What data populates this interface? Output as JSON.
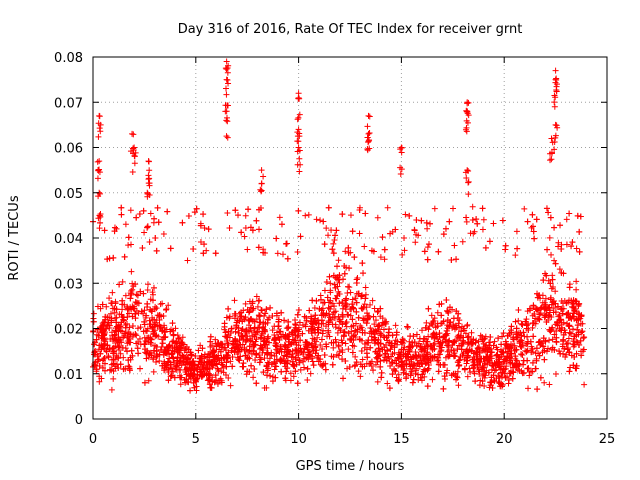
{
  "chart_data": {
    "type": "scatter",
    "title": "Day 316 of 2016, Rate Of TEC Index for receiver grnt",
    "xlabel": "GPS time / hours",
    "ylabel": "ROTI / TECUs",
    "xlim": [
      0,
      25
    ],
    "ylim": [
      0,
      0.08
    ],
    "x_ticks": [
      0,
      5,
      10,
      15,
      20,
      25
    ],
    "y_ticks": [
      0,
      0.01,
      0.02,
      0.03,
      0.04,
      0.05,
      0.06,
      0.07,
      0.08
    ],
    "x_tick_labels": [
      "0",
      "5",
      "10",
      "15",
      "20",
      "25"
    ],
    "y_tick_labels": [
      "0",
      "0.01",
      "0.02",
      "0.03",
      "0.04",
      "0.05",
      "0.06",
      "0.07",
      "0.08"
    ],
    "grid": true,
    "marker": "+",
    "marker_color": "#ff0000",
    "series": [
      {
        "name": "ROTI",
        "x_range": [
          0,
          23.9
        ],
        "typical_band": [
          0.005,
          0.035
        ],
        "notable_points": [
          {
            "x": 0.3,
            "y": 0.067
          },
          {
            "x": 0.3,
            "y": 0.057
          },
          {
            "x": 0.3,
            "y": 0.05
          },
          {
            "x": 1.9,
            "y": 0.063
          },
          {
            "x": 2.0,
            "y": 0.06
          },
          {
            "x": 2.7,
            "y": 0.057
          },
          {
            "x": 2.7,
            "y": 0.053
          },
          {
            "x": 6.5,
            "y": 0.079
          },
          {
            "x": 6.5,
            "y": 0.075
          },
          {
            "x": 6.5,
            "y": 0.068
          },
          {
            "x": 8.2,
            "y": 0.055
          },
          {
            "x": 10.0,
            "y": 0.072
          },
          {
            "x": 10.0,
            "y": 0.064
          },
          {
            "x": 10.0,
            "y": 0.06
          },
          {
            "x": 13.4,
            "y": 0.067
          },
          {
            "x": 13.4,
            "y": 0.063
          },
          {
            "x": 15.0,
            "y": 0.06
          },
          {
            "x": 18.2,
            "y": 0.07
          },
          {
            "x": 18.2,
            "y": 0.068
          },
          {
            "x": 18.2,
            "y": 0.055
          },
          {
            "x": 22.5,
            "y": 0.077
          },
          {
            "x": 22.5,
            "y": 0.075
          },
          {
            "x": 22.5,
            "y": 0.065
          },
          {
            "x": 22.3,
            "y": 0.062
          }
        ]
      }
    ]
  }
}
